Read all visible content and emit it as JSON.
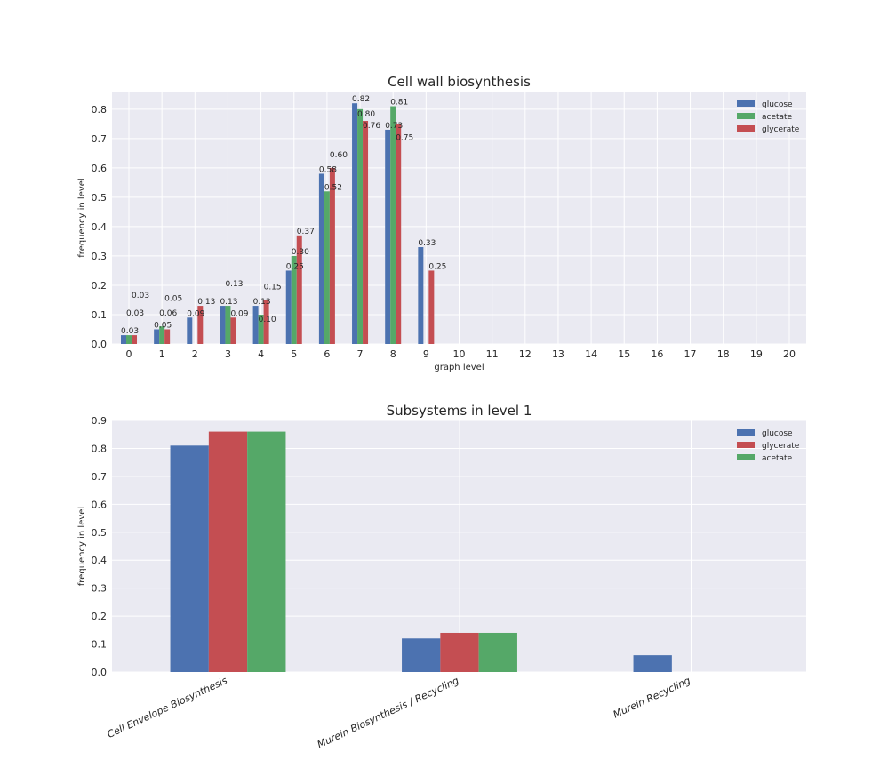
{
  "colors": {
    "glucose": "#4c72b0",
    "acetate": "#55a868",
    "glycerate": "#c44e52",
    "plot_bg": "#eaeaf2",
    "grid": "#ffffff",
    "text": "#262626"
  },
  "chart_data": [
    {
      "type": "bar",
      "title": "Cell wall biosynthesis",
      "xlabel": "graph level",
      "ylabel": "frequency in level",
      "ylim": [
        0,
        0.86
      ],
      "yticks": [
        "0.0",
        "0.1",
        "0.2",
        "0.3",
        "0.4",
        "0.5",
        "0.6",
        "0.7",
        "0.8"
      ],
      "categories": [
        "0",
        "1",
        "2",
        "3",
        "4",
        "5",
        "6",
        "7",
        "8",
        "9",
        "10",
        "11",
        "12",
        "13",
        "14",
        "15",
        "16",
        "17",
        "18",
        "19",
        "20"
      ],
      "legend_position": "top-right",
      "series": [
        {
          "name": "glucose",
          "values": [
            0.03,
            0.05,
            0.09,
            0.13,
            0.13,
            0.25,
            0.58,
            0.82,
            0.73,
            0.33,
            0,
            0,
            0,
            0,
            0,
            0,
            0,
            0,
            0,
            0,
            0
          ],
          "labels": [
            "0.03",
            "0.05",
            "0.09",
            "0.13",
            "0.13",
            "0.25",
            "0.58",
            "0.82",
            "0.73",
            "0.33"
          ]
        },
        {
          "name": "acetate",
          "values": [
            0.03,
            0.06,
            0,
            0.13,
            0.1,
            0.3,
            0.52,
            0.8,
            0.81,
            0,
            0,
            0,
            0,
            0,
            0,
            0,
            0,
            0,
            0,
            0,
            0
          ],
          "labels": [
            "0.03",
            "0.06",
            "",
            "0.13",
            "0.10",
            "0.30",
            "0.52",
            "0.80",
            "0.81",
            ""
          ]
        },
        {
          "name": "glycerate",
          "values": [
            0.03,
            0.05,
            0.13,
            0.09,
            0.15,
            0.37,
            0.6,
            0.76,
            0.75,
            0.25,
            0,
            0,
            0,
            0,
            0,
            0,
            0,
            0,
            0,
            0,
            0
          ],
          "labels": [
            "0.03",
            "0.05",
            "0.13",
            "0.09",
            "0.15",
            "0.37",
            "0.60",
            "0.76",
            "0.75",
            "0.25"
          ]
        }
      ]
    },
    {
      "type": "bar",
      "title": "Subsystems in level 1",
      "xlabel": "",
      "ylabel": "frequency in level",
      "ylim": [
        0,
        0.9
      ],
      "yticks": [
        "0.0",
        "0.1",
        "0.2",
        "0.3",
        "0.4",
        "0.5",
        "0.6",
        "0.7",
        "0.8",
        "0.9"
      ],
      "categories": [
        "Cell Envelope Biosynthesis",
        "Murein Biosynthesis / Recycling",
        "Murein Recycling"
      ],
      "legend_position": "top-right",
      "series": [
        {
          "name": "glucose",
          "values": [
            0.81,
            0.12,
            0.06
          ]
        },
        {
          "name": "glycerate",
          "values": [
            0.86,
            0.14,
            0
          ]
        },
        {
          "name": "acetate",
          "values": [
            0.86,
            0.14,
            0
          ]
        }
      ]
    }
  ]
}
